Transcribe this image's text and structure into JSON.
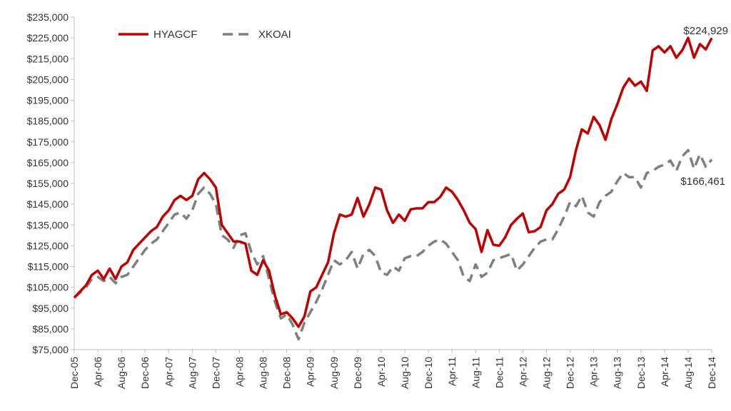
{
  "chart_data": {
    "type": "line",
    "title": "",
    "xlabel": "",
    "ylabel": "",
    "ylim": [
      75000,
      235000
    ],
    "y_ticks": [
      "$75,000",
      "$85,000",
      "$95,000",
      "$105,000",
      "$115,000",
      "$125,000",
      "$135,000",
      "$145,000",
      "$155,000",
      "$165,000",
      "$175,000",
      "$185,000",
      "$195,000",
      "$205,000",
      "$215,000",
      "$225,000",
      "$235,000"
    ],
    "x_tick_labels": [
      "Dec-05",
      "Apr-06",
      "Aug-06",
      "Dec-06",
      "Apr-07",
      "Aug-07",
      "Dec-07",
      "Apr-08",
      "Aug-08",
      "Dec-08",
      "Apr-09",
      "Aug-09",
      "Dec-09",
      "Apr-10",
      "Aug-10",
      "Dec-10",
      "Apr-11",
      "Aug-11",
      "Dec-11",
      "Apr-12",
      "Aug-12",
      "Dec-12",
      "Apr-13",
      "Aug-13",
      "Dec-13",
      "Apr-14",
      "Aug-14",
      "Dec-14"
    ],
    "x_start": "Dec-05",
    "x_end": "Dec-14",
    "grid": false,
    "legend_position": "top-left",
    "series": [
      {
        "name": "HYAGCF",
        "color": "#c00000",
        "style": "solid",
        "end_label": "$224,929",
        "values": [
          100000,
          103000,
          106000,
          111000,
          113000,
          109000,
          114000,
          109000,
          115000,
          117000,
          123000,
          126000,
          129000,
          132000,
          134000,
          139000,
          142000,
          147000,
          149000,
          147000,
          149000,
          157000,
          160000,
          157000,
          153000,
          135000,
          131000,
          127000,
          127000,
          126000,
          113000,
          111000,
          118000,
          113000,
          101000,
          92000,
          93000,
          90000,
          86000,
          91000,
          103000,
          105000,
          111000,
          117000,
          131000,
          140000,
          139000,
          140000,
          148000,
          139000,
          145000,
          153000,
          152000,
          142000,
          136000,
          140000,
          137000,
          142500,
          143000,
          143000,
          146000,
          146000,
          148500,
          153000,
          151000,
          147000,
          142000,
          136000,
          133000,
          122000,
          132500,
          125500,
          125000,
          129000,
          135000,
          138000,
          140500,
          131500,
          132000,
          134000,
          142000,
          145000,
          150000,
          152000,
          158000,
          171000,
          181000,
          179000,
          187000,
          183000,
          176000,
          186000,
          193000,
          201000,
          205500,
          202000,
          204000,
          199500,
          219000,
          221000,
          218000,
          221000,
          215500,
          219000,
          225000,
          215500,
          222000,
          219500,
          224929
        ]
      },
      {
        "name": "XKOAI",
        "color": "#7f7f7f",
        "style": "dashed",
        "end_label": "$166,461",
        "values": [
          100000,
          102500,
          105000,
          109000,
          110000,
          108000,
          110000,
          107000,
          110000,
          111000,
          115000,
          119000,
          123000,
          126000,
          128000,
          132000,
          136000,
          140000,
          141000,
          138000,
          142000,
          150000,
          153000,
          150000,
          145000,
          130000,
          128000,
          124000,
          130000,
          131000,
          122000,
          116000,
          120000,
          109000,
          98000,
          90000,
          92000,
          87000,
          80000,
          88000,
          93000,
          98000,
          104000,
          111000,
          118000,
          116000,
          118000,
          122000,
          114000,
          121000,
          123000,
          120000,
          112000,
          111000,
          115000,
          113000,
          119000,
          120000,
          120000,
          122000,
          125000,
          127000,
          128000,
          126000,
          122000,
          118000,
          110000,
          108000,
          116000,
          110000,
          112000,
          118000,
          119000,
          120000,
          121000,
          113000,
          116000,
          120000,
          124000,
          127000,
          128000,
          128000,
          133000,
          139000,
          146000,
          144000,
          149000,
          141000,
          139000,
          146000,
          149000,
          151000,
          156000,
          160000,
          158000,
          158000,
          153000,
          160000,
          161000,
          163000,
          164000,
          166000,
          161000,
          168000,
          171000,
          162000,
          169000,
          163000,
          166461
        ]
      }
    ]
  }
}
